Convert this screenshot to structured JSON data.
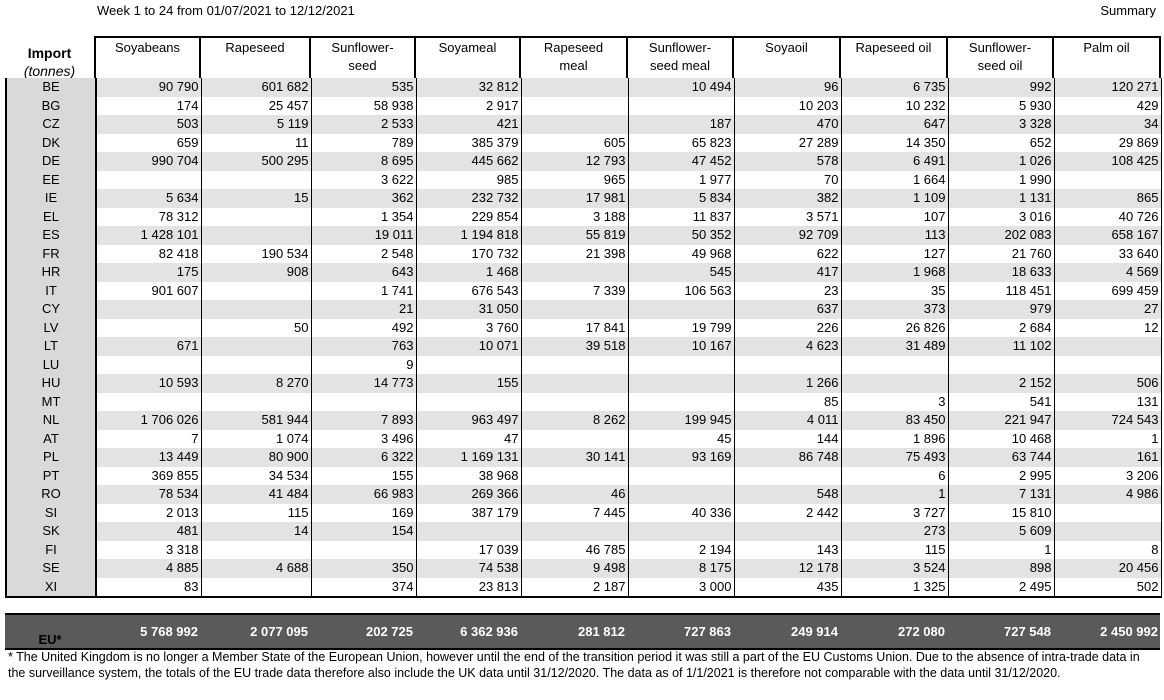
{
  "header": {
    "period": "Week 1 to 24 from 01/07/2021 to 12/12/2021",
    "summary": "Summary"
  },
  "table": {
    "corner": [
      "Import",
      "(tonnes)"
    ],
    "columns": [
      [
        "Soyabeans"
      ],
      [
        "Rapeseed"
      ],
      [
        "Sunflower-",
        "seed"
      ],
      [
        "Soyameal"
      ],
      [
        "Rapeseed",
        "meal"
      ],
      [
        "Sunflower-",
        "seed meal"
      ],
      [
        "Soyaoil"
      ],
      [
        "Rapeseed oil"
      ],
      [
        "Sunflower-",
        "seed oil"
      ],
      [
        "Palm oil"
      ]
    ],
    "rows": [
      {
        "label": "BE",
        "cells": [
          "90 790",
          "601 682",
          "535",
          "32 812",
          null,
          "10 494",
          "96",
          "6 735",
          "992",
          "120 271"
        ]
      },
      {
        "label": "BG",
        "cells": [
          "174",
          "25 457",
          "58 938",
          "2 917",
          null,
          null,
          "10 203",
          "10 232",
          "5 930",
          "429"
        ]
      },
      {
        "label": "CZ",
        "cells": [
          "503",
          "5 119",
          "2 533",
          "421",
          null,
          "187",
          "470",
          "647",
          "3 328",
          "34"
        ]
      },
      {
        "label": "DK",
        "cells": [
          "659",
          "11",
          "789",
          "385 379",
          "605",
          "65 823",
          "27 289",
          "14 350",
          "652",
          "29 869"
        ]
      },
      {
        "label": "DE",
        "cells": [
          "990 704",
          "500 295",
          "8 695",
          "445 662",
          "12 793",
          "47 452",
          "578",
          "6 491",
          "1 026",
          "108 425"
        ]
      },
      {
        "label": "EE",
        "cells": [
          null,
          null,
          "3 622",
          "985",
          "965",
          "1 977",
          "70",
          "1 664",
          "1 990",
          null
        ]
      },
      {
        "label": "IE",
        "cells": [
          "5 634",
          "15",
          "362",
          "232 732",
          "17 981",
          "5 834",
          "382",
          "1 109",
          "1 131",
          "865"
        ]
      },
      {
        "label": "EL",
        "cells": [
          "78 312",
          null,
          "1 354",
          "229 854",
          "3 188",
          "11 837",
          "3 571",
          "107",
          "3 016",
          "40 726"
        ]
      },
      {
        "label": "ES",
        "cells": [
          "1 428 101",
          null,
          "19 011",
          "1 194 818",
          "55 819",
          "50 352",
          "92 709",
          "113",
          "202 083",
          "658 167"
        ]
      },
      {
        "label": "FR",
        "cells": [
          "82 418",
          "190 534",
          "2 548",
          "170 732",
          "21 398",
          "49 968",
          "622",
          "127",
          "21 760",
          "33 640"
        ]
      },
      {
        "label": "HR",
        "cells": [
          "175",
          "908",
          "643",
          "1 468",
          null,
          "545",
          "417",
          "1 968",
          "18 633",
          "4 569"
        ]
      },
      {
        "label": "IT",
        "cells": [
          "901 607",
          null,
          "1 741",
          "676 543",
          "7 339",
          "106 563",
          "23",
          "35",
          "118 451",
          "699 459"
        ]
      },
      {
        "label": "CY",
        "cells": [
          null,
          null,
          "21",
          "31 050",
          null,
          null,
          "637",
          "373",
          "979",
          "27"
        ]
      },
      {
        "label": "LV",
        "cells": [
          null,
          "50",
          "492",
          "3 760",
          "17 841",
          "19 799",
          "226",
          "26 826",
          "2 684",
          "12"
        ]
      },
      {
        "label": "LT",
        "cells": [
          "671",
          null,
          "763",
          "10 071",
          "39 518",
          "10 167",
          "4 623",
          "31 489",
          "11 102",
          null
        ]
      },
      {
        "label": "LU",
        "cells": [
          null,
          null,
          "9",
          null,
          null,
          null,
          null,
          null,
          null,
          null
        ]
      },
      {
        "label": "HU",
        "cells": [
          "10 593",
          "8 270",
          "14 773",
          "155",
          null,
          null,
          "1 266",
          null,
          "2 152",
          "506"
        ]
      },
      {
        "label": "MT",
        "cells": [
          null,
          null,
          null,
          null,
          null,
          null,
          "85",
          "3",
          "541",
          "131"
        ]
      },
      {
        "label": "NL",
        "cells": [
          "1 706 026",
          "581 944",
          "7 893",
          "963 497",
          "8 262",
          "199 945",
          "4 011",
          "83 450",
          "221 947",
          "724 543"
        ]
      },
      {
        "label": "AT",
        "cells": [
          "7",
          "1 074",
          "3 496",
          "47",
          null,
          "45",
          "144",
          "1 896",
          "10 468",
          "1"
        ]
      },
      {
        "label": "PL",
        "cells": [
          "13 449",
          "80 900",
          "6 322",
          "1 169 131",
          "30 141",
          "93 169",
          "86 748",
          "75 493",
          "63 744",
          "161"
        ]
      },
      {
        "label": "PT",
        "cells": [
          "369 855",
          "34 534",
          "155",
          "38 968",
          null,
          null,
          null,
          "6",
          "2 995",
          "3 206"
        ]
      },
      {
        "label": "RO",
        "cells": [
          "78 534",
          "41 484",
          "66 983",
          "269 366",
          "46",
          null,
          "548",
          "1",
          "7 131",
          "4 986"
        ]
      },
      {
        "label": "SI",
        "cells": [
          "2 013",
          "115",
          "169",
          "387 179",
          "7 445",
          "40 336",
          "2 442",
          "3 727",
          "15 810",
          null
        ]
      },
      {
        "label": "SK",
        "cells": [
          "481",
          "14",
          "154",
          null,
          null,
          null,
          null,
          "273",
          "5 609",
          null
        ]
      },
      {
        "label": "FI",
        "cells": [
          "3 318",
          null,
          null,
          "17 039",
          "46 785",
          "2 194",
          "143",
          "115",
          "1",
          "8"
        ]
      },
      {
        "label": "SE",
        "cells": [
          "4 885",
          "4 688",
          "350",
          "74 538",
          "9 498",
          "8 175",
          "12 178",
          "3 524",
          "898",
          "20 456"
        ]
      },
      {
        "label": "XI",
        "cells": [
          "83",
          null,
          "374",
          "23 813",
          "2 187",
          "3 000",
          "435",
          "1 325",
          "2 495",
          "502"
        ]
      }
    ],
    "total": {
      "label": "EU*",
      "cells": [
        "5 768 992",
        "2 077 095",
        "202 725",
        "6 362 936",
        "281 812",
        "727 863",
        "249 914",
        "272 080",
        "727 548",
        "2 450 992"
      ]
    }
  },
  "footnote": "* The United Kingdom is no longer a Member State of the European Union, however until the end of the transition period it was still a part of the EU Customs Union. Due to the absence of intra-trade data in the surveillance system, the totals of the EU trade data  therefore also include the UK data until 31/12/2020. The data as of 1/1/2021 is therefore not comparable with the data until 31/12/2020."
}
